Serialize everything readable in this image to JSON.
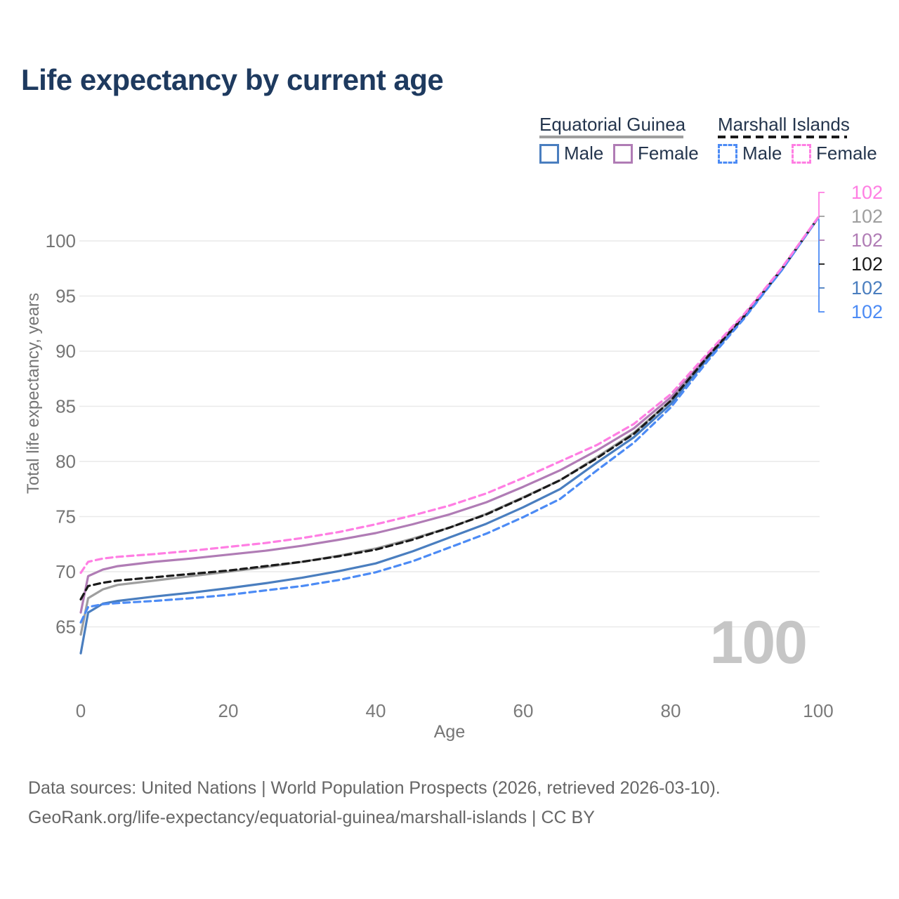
{
  "title": "Life expectancy by current age",
  "legend": {
    "groups": [
      {
        "label": "Equatorial Guinea",
        "line_style": "solid",
        "line_color": "#9e9e9e",
        "items": [
          {
            "label": "Male",
            "color": "#4a7ebf",
            "dashed": false
          },
          {
            "label": "Female",
            "color": "#b07cb5",
            "dashed": false
          }
        ]
      },
      {
        "label": "Marshall Islands",
        "line_style": "dashed",
        "line_color": "#1a1a1a",
        "items": [
          {
            "label": "Male",
            "color": "#4c8bf5",
            "dashed": true
          },
          {
            "label": "Female",
            "color": "#ff7ee3",
            "dashed": true
          }
        ]
      }
    ]
  },
  "chart_data": {
    "type": "line",
    "title": "Life expectancy by current age",
    "xlabel": "Age",
    "ylabel": "Total life expectancy, years",
    "xticks": [
      0,
      20,
      40,
      60,
      80,
      100
    ],
    "yticks": [
      65,
      70,
      75,
      80,
      85,
      90,
      95,
      100
    ],
    "xlim": [
      0,
      100
    ],
    "ylim": [
      62,
      103
    ],
    "grid": "horizontal",
    "legend_position": "top-right",
    "ages": [
      0,
      1,
      3,
      5,
      10,
      15,
      20,
      25,
      30,
      35,
      40,
      45,
      50,
      55,
      60,
      65,
      70,
      75,
      80,
      85,
      90,
      95,
      100
    ],
    "series": [
      {
        "name": "Equatorial Guinea — Both sexes",
        "country": "Equatorial Guinea",
        "sex": "Both",
        "color": "#9e9e9e",
        "dashed": false,
        "end_label": "102",
        "values": [
          64.3,
          67.6,
          68.4,
          68.8,
          69.2,
          69.6,
          70.0,
          70.4,
          70.9,
          71.45,
          72.1,
          73.0,
          74.0,
          75.25,
          76.75,
          78.3,
          80.4,
          82.6,
          85.5,
          89.5,
          93.2,
          97.4,
          102.1
        ]
      },
      {
        "name": "Equatorial Guinea — Male",
        "country": "Equatorial Guinea",
        "sex": "Male",
        "color": "#4a7ebf",
        "dashed": false,
        "end_label": "102",
        "values": [
          62.6,
          66.3,
          67.1,
          67.35,
          67.75,
          68.1,
          68.5,
          68.95,
          69.45,
          70.05,
          70.75,
          71.85,
          73.1,
          74.35,
          75.85,
          77.5,
          79.9,
          82.2,
          85.2,
          89.3,
          93.1,
          97.3,
          102.1
        ]
      },
      {
        "name": "Equatorial Guinea — Female",
        "country": "Equatorial Guinea",
        "sex": "Female",
        "color": "#b07cb5",
        "dashed": false,
        "end_label": "102",
        "values": [
          66.3,
          69.6,
          70.2,
          70.5,
          70.9,
          71.2,
          71.55,
          71.9,
          72.35,
          72.9,
          73.5,
          74.3,
          75.2,
          76.3,
          77.7,
          79.2,
          81.0,
          83.0,
          85.8,
          89.6,
          93.3,
          97.4,
          102.1
        ]
      },
      {
        "name": "Marshall Islands — Both sexes",
        "country": "Marshall Islands",
        "sex": "Both",
        "color": "#1a1a1a",
        "dashed": true,
        "end_label": "102",
        "values": [
          67.5,
          68.7,
          69.0,
          69.2,
          69.5,
          69.8,
          70.1,
          70.5,
          70.9,
          71.4,
          72.0,
          72.9,
          74.0,
          75.2,
          76.7,
          78.3,
          80.3,
          82.5,
          85.5,
          89.5,
          93.2,
          97.4,
          102.1
        ]
      },
      {
        "name": "Marshall Islands — Male",
        "country": "Marshall Islands",
        "sex": "Male",
        "color": "#4c8bf5",
        "dashed": true,
        "end_label": "102",
        "values": [
          65.4,
          66.8,
          67.05,
          67.15,
          67.35,
          67.6,
          67.9,
          68.3,
          68.7,
          69.25,
          69.95,
          70.95,
          72.2,
          73.45,
          74.95,
          76.6,
          79.2,
          81.7,
          84.9,
          89.1,
          93.0,
          97.3,
          102.1
        ]
      },
      {
        "name": "Marshall Islands — Female",
        "country": "Marshall Islands",
        "sex": "Female",
        "color": "#ff7ee3",
        "dashed": true,
        "end_label": "102",
        "values": [
          69.9,
          70.9,
          71.2,
          71.35,
          71.6,
          71.9,
          72.25,
          72.6,
          73.05,
          73.6,
          74.3,
          75.1,
          76.0,
          77.1,
          78.5,
          80.0,
          81.5,
          83.4,
          86.1,
          89.8,
          93.4,
          97.5,
          102.15
        ]
      }
    ]
  },
  "end_labels": [
    {
      "value": "102",
      "color": "#ff7ee3",
      "flag": "marshall-islands"
    },
    {
      "value": "102",
      "color": "#9e9e9e",
      "flag": "equatorial-guinea"
    },
    {
      "value": "102",
      "color": "#b07cb5",
      "flag": "equatorial-guinea"
    },
    {
      "value": "102",
      "color": "#1a1a1a",
      "flag": "marshall-islands"
    },
    {
      "value": "102",
      "color": "#4a7ebf",
      "flag": "equatorial-guinea"
    },
    {
      "value": "102",
      "color": "#4c8bf5",
      "flag": "marshall-islands"
    }
  ],
  "watermark": "100",
  "footer": {
    "line1": "Data sources: United Nations | World Population Prospects (2026, retrieved 2026-03-10).",
    "line2": "GeoRank.org/life-expectancy/equatorial-guinea/marshall-islands | CC BY"
  }
}
